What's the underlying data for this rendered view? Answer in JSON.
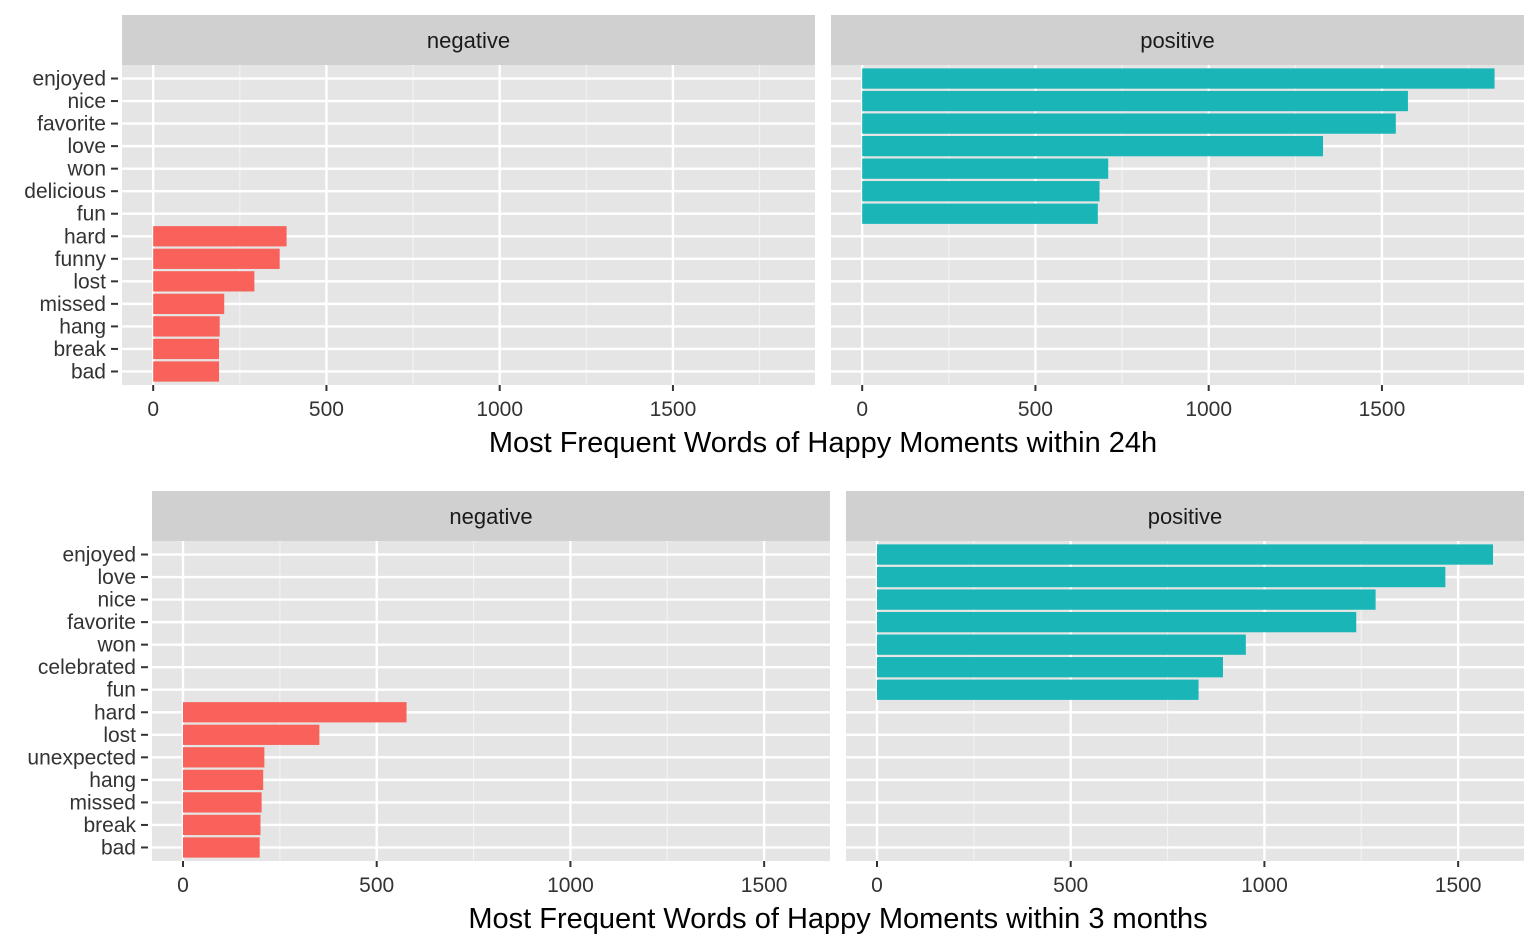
{
  "colors": {
    "panel_bg": "#e5e5e5",
    "strip_bg": "#d0d0d0",
    "grid_major": "#ffffff",
    "grid_minor": "#f2f2f2",
    "negative_bar": "#f8625a",
    "positive_bar": "#19b5b7",
    "axis_text": "#333333",
    "title_text": "#000000"
  },
  "chart_data": [
    {
      "type": "bar",
      "orientation": "horizontal",
      "title": "Most Frequent Words of Happy Moments within 24h",
      "categories": [
        "enjoyed",
        "nice",
        "favorite",
        "love",
        "won",
        "delicious",
        "fun",
        "hard",
        "funny",
        "lost",
        "missed",
        "hang",
        "break",
        "bad"
      ],
      "xlim": [
        -90,
        1910
      ],
      "xticks": [
        0,
        500,
        1000,
        1500
      ],
      "facets": [
        {
          "name": "negative",
          "bars": [
            {
              "category": "hard",
              "value": 385
            },
            {
              "category": "funny",
              "value": 365
            },
            {
              "category": "lost",
              "value": 292
            },
            {
              "category": "missed",
              "value": 205
            },
            {
              "category": "hang",
              "value": 192
            },
            {
              "category": "break",
              "value": 190
            },
            {
              "category": "bad",
              "value": 190
            }
          ]
        },
        {
          "name": "positive",
          "bars": [
            {
              "category": "enjoyed",
              "value": 1825
            },
            {
              "category": "nice",
              "value": 1575
            },
            {
              "category": "favorite",
              "value": 1540
            },
            {
              "category": "love",
              "value": 1330
            },
            {
              "category": "won",
              "value": 710
            },
            {
              "category": "delicious",
              "value": 685
            },
            {
              "category": "fun",
              "value": 680
            }
          ]
        }
      ]
    },
    {
      "type": "bar",
      "orientation": "horizontal",
      "title": "Most Frequent Words of Happy Moments within 3 months",
      "categories": [
        "enjoyed",
        "love",
        "nice",
        "favorite",
        "won",
        "celebrated",
        "fun",
        "hard",
        "lost",
        "unexpected",
        "hang",
        "missed",
        "break",
        "bad"
      ],
      "xlim": [
        -80,
        1670
      ],
      "xticks": [
        0,
        500,
        1000,
        1500
      ],
      "facets": [
        {
          "name": "negative",
          "bars": [
            {
              "category": "hard",
              "value": 577
            },
            {
              "category": "lost",
              "value": 352
            },
            {
              "category": "unexpected",
              "value": 210
            },
            {
              "category": "hang",
              "value": 207
            },
            {
              "category": "missed",
              "value": 203
            },
            {
              "category": "break",
              "value": 200
            },
            {
              "category": "bad",
              "value": 198
            }
          ]
        },
        {
          "name": "positive",
          "bars": [
            {
              "category": "enjoyed",
              "value": 1590
            },
            {
              "category": "love",
              "value": 1467
            },
            {
              "category": "nice",
              "value": 1287
            },
            {
              "category": "favorite",
              "value": 1237
            },
            {
              "category": "won",
              "value": 952
            },
            {
              "category": "celebrated",
              "value": 893
            },
            {
              "category": "fun",
              "value": 830
            }
          ]
        }
      ]
    }
  ]
}
